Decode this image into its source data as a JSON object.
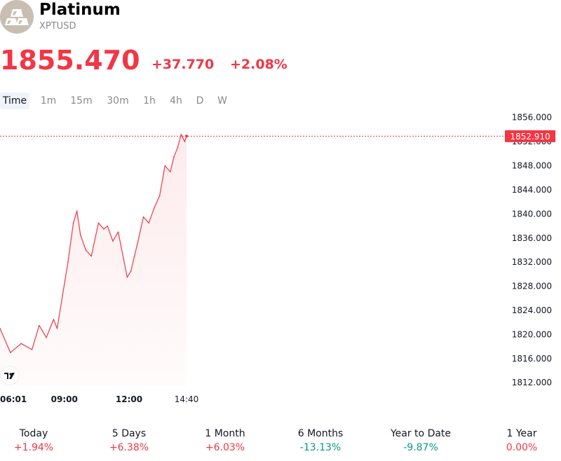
{
  "symbol": {
    "name": "Platinum",
    "ticker": "XPTUSD",
    "logo_icon": "platinum-bars-icon"
  },
  "quote": {
    "price": "1855.470",
    "change": "+37.770",
    "change_pct": "+2.08%",
    "color": "#f23645"
  },
  "timeframes": [
    "Time",
    "1m",
    "15m",
    "30m",
    "1h",
    "4h",
    "D",
    "W"
  ],
  "active_timeframe": "Time",
  "chart_data": {
    "type": "area",
    "line_color": "#f23645",
    "current_value": 1852.91,
    "current_label": "1852.910",
    "x_tick_labels": [
      "06:01",
      "09:00",
      "12:00",
      "14:40"
    ],
    "y_ticks": [
      1812,
      1816,
      1820,
      1824,
      1828,
      1832,
      1836,
      1840,
      1844,
      1848,
      1852,
      1856
    ],
    "y_tick_labels": [
      "1812.000",
      "1816.000",
      "1820.000",
      "1824.000",
      "1828.000",
      "1832.000",
      "1836.000",
      "1840.000",
      "1844.000",
      "1848.000",
      "1852.000",
      "1856.000"
    ],
    "ylim": [
      1810.4,
      1856.9
    ],
    "x": [
      "06:01",
      "06:30",
      "07:00",
      "07:30",
      "07:50",
      "08:10",
      "08:30",
      "08:40",
      "08:55",
      "09:10",
      "09:25",
      "09:35",
      "09:45",
      "10:00",
      "10:15",
      "10:35",
      "10:50",
      "11:00",
      "11:15",
      "11:30",
      "11:45",
      "11:55",
      "12:05",
      "12:15",
      "12:25",
      "12:40",
      "12:55",
      "13:10",
      "13:25",
      "13:40",
      "13:55",
      "14:05",
      "14:15",
      "14:25",
      "14:35",
      "14:40"
    ],
    "values": [
      1821.0,
      1817.0,
      1818.5,
      1817.5,
      1821.5,
      1819.5,
      1822.5,
      1821.0,
      1826.5,
      1832.0,
      1838.5,
      1840.5,
      1836.5,
      1834.0,
      1833.0,
      1838.5,
      1837.5,
      1838.0,
      1835.5,
      1837.0,
      1832.5,
      1829.5,
      1830.5,
      1833.0,
      1835.5,
      1839.5,
      1838.5,
      1841.0,
      1843.0,
      1848.0,
      1847.0,
      1849.5,
      1851.0,
      1853.2,
      1852.0,
      1852.91
    ]
  },
  "performance": [
    {
      "label": "Today",
      "value": "+1.94%",
      "dir": "neg"
    },
    {
      "label": "5 Days",
      "value": "+6.38%",
      "dir": "neg"
    },
    {
      "label": "1 Month",
      "value": "+6.03%",
      "dir": "neg"
    },
    {
      "label": "6 Months",
      "value": "-13.13%",
      "dir": "pos"
    },
    {
      "label": "Year to Date",
      "value": "-9.87%",
      "dir": "pos"
    },
    {
      "label": "1 Year",
      "value": "0.00%",
      "dir": "neg"
    }
  ]
}
